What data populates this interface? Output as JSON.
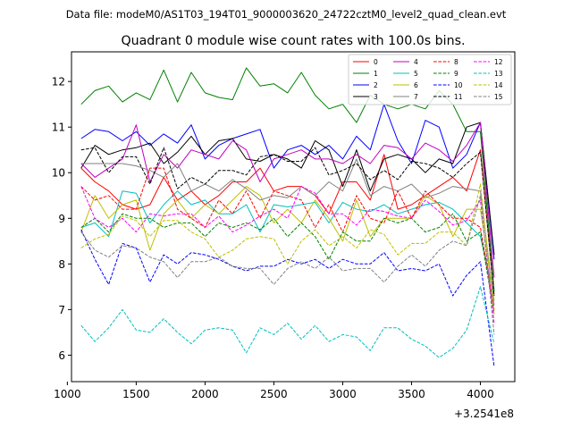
{
  "chart_data": {
    "type": "line",
    "suptitle": "Data file: modeM0/AS1T03_194T01_9000003620_24722cztM0_level2_quad_clean.evt",
    "title": "Quadrant 0 module wise count rates with 100.0s bins.",
    "xlabel": "",
    "ylabel": "",
    "x_offset_label": "+3.2541e8",
    "xlim": [
      1030,
      4250
    ],
    "ylim": [
      5.42,
      12.65
    ],
    "xticks": [
      1000,
      1500,
      2000,
      2500,
      3000,
      3500,
      4000
    ],
    "yticks": [
      6,
      7,
      8,
      9,
      10,
      11,
      12
    ],
    "legend_position": "top-right",
    "legend_columns": 4,
    "x": [
      1100,
      1200,
      1300,
      1400,
      1500,
      1600,
      1700,
      1800,
      1900,
      2000,
      2100,
      2200,
      2300,
      2400,
      2500,
      2600,
      2700,
      2800,
      2900,
      3000,
      3100,
      3200,
      3300,
      3400,
      3500,
      3600,
      3700,
      3800,
      3900,
      4000,
      4100
    ],
    "series": [
      {
        "name": "0",
        "color": "#ff0000",
        "dash": "solid",
        "values": [
          10.1,
          9.8,
          9.6,
          9.3,
          9.2,
          9.3,
          9.9,
          9.4,
          9.6,
          9.3,
          9.5,
          9.8,
          9.8,
          10.1,
          9.6,
          9.7,
          9.7,
          9.5,
          9.1,
          9.8,
          9.8,
          9.4,
          10.4,
          9.2,
          9.3,
          9.5,
          9.7,
          9.9,
          9.6,
          10.5,
          7.3
        ]
      },
      {
        "name": "1",
        "color": "#008000",
        "dash": "solid",
        "values": [
          11.5,
          11.8,
          11.9,
          11.55,
          11.75,
          11.6,
          12.25,
          11.55,
          12.2,
          11.75,
          11.65,
          11.6,
          12.3,
          11.9,
          11.95,
          11.75,
          12.2,
          11.7,
          11.4,
          11.5,
          11.1,
          11.7,
          11.5,
          11.4,
          11.5,
          11.4,
          11.8,
          11.5,
          10.9,
          10.9,
          7.4
        ]
      },
      {
        "name": "2",
        "color": "#0000ff",
        "dash": "solid",
        "values": [
          10.75,
          10.95,
          10.9,
          10.7,
          10.9,
          10.6,
          10.85,
          10.65,
          11.05,
          10.3,
          10.6,
          10.75,
          10.85,
          10.95,
          10.1,
          10.5,
          10.6,
          10.4,
          10.6,
          10.3,
          10.8,
          10.5,
          11.5,
          10.7,
          10.2,
          11.15,
          11.0,
          10.1,
          10.4,
          11.1,
          8.1
        ]
      },
      {
        "name": "3",
        "color": "#000000",
        "dash": "solid",
        "values": [
          10.1,
          10.6,
          10.4,
          10.5,
          10.55,
          10.65,
          10.2,
          10.45,
          10.8,
          10.4,
          10.7,
          10.75,
          10.3,
          10.25,
          10.4,
          10.3,
          10.1,
          10.7,
          10.5,
          9.7,
          10.5,
          9.6,
          10.3,
          10.4,
          10.3,
          10.0,
          10.3,
          10.2,
          11.0,
          11.1,
          8.2
        ]
      },
      {
        "name": "4",
        "color": "#bf00bf",
        "dash": "solid",
        "values": [
          10.2,
          9.9,
          10.1,
          10.3,
          11.05,
          9.8,
          10.4,
          10.1,
          10.5,
          10.4,
          10.3,
          10.7,
          10.5,
          9.8,
          10.3,
          10.4,
          10.5,
          10.3,
          10.3,
          10.2,
          10.4,
          10.2,
          10.6,
          10.55,
          10.3,
          10.65,
          10.5,
          10.25,
          10.6,
          11.1,
          7.7
        ]
      },
      {
        "name": "5",
        "color": "#00bfbf",
        "dash": "solid",
        "values": [
          8.8,
          8.9,
          8.6,
          9.6,
          9.55,
          8.9,
          9.3,
          9.6,
          9.3,
          9.4,
          9.1,
          9.1,
          9.3,
          8.7,
          9.3,
          9.25,
          9.3,
          9.35,
          8.9,
          9.35,
          9.2,
          9.15,
          9.3,
          9.1,
          9.2,
          9.3,
          9.35,
          9.2,
          8.9,
          8.6,
          7.3
        ]
      },
      {
        "name": "6",
        "color": "#bfbf00",
        "dash": "solid",
        "values": [
          8.7,
          9.5,
          9.0,
          9.3,
          9.4,
          8.3,
          9.1,
          9.4,
          9.0,
          9.3,
          9.1,
          9.4,
          9.7,
          9.5,
          8.9,
          9.2,
          8.9,
          9.4,
          9.0,
          8.5,
          9.4,
          8.6,
          9.0,
          9.0,
          9.0,
          9.5,
          9.3,
          8.6,
          9.2,
          9.2,
          7.2
        ]
      },
      {
        "name": "7",
        "color": "#808080",
        "dash": "solid",
        "values": [
          10.2,
          10.2,
          10.2,
          10.2,
          10.15,
          10.05,
          9.9,
          10.2,
          9.6,
          9.75,
          9.6,
          9.85,
          9.65,
          9.4,
          9.5,
          9.45,
          9.7,
          9.5,
          9.8,
          9.6,
          10.3,
          9.5,
          9.7,
          9.6,
          9.75,
          9.45,
          9.55,
          9.7,
          9.65,
          9.6,
          7.1
        ]
      },
      {
        "name": "8",
        "color": "#ff0000",
        "dash": "dashed",
        "values": [
          9.7,
          9.4,
          9.5,
          9.2,
          9.2,
          10.1,
          10.1,
          9.2,
          9.0,
          8.8,
          9.4,
          9.1,
          9.6,
          9.0,
          9.6,
          9.5,
          9.4,
          8.8,
          9.3,
          8.7,
          9.5,
          9.0,
          8.9,
          9.6,
          9.0,
          9.6,
          9.3,
          9.0,
          9.0,
          8.8,
          7.0
        ]
      },
      {
        "name": "9",
        "color": "#008000",
        "dash": "dashed",
        "values": [
          8.8,
          9.0,
          8.7,
          9.1,
          9.0,
          9.0,
          8.8,
          8.9,
          8.9,
          8.6,
          8.9,
          8.8,
          8.9,
          8.75,
          9.0,
          8.6,
          8.9,
          8.6,
          8.1,
          8.7,
          8.5,
          8.5,
          9.0,
          8.9,
          9.0,
          8.7,
          8.8,
          9.1,
          8.5,
          8.7,
          6.9
        ]
      },
      {
        "name": "10",
        "color": "#0000ff",
        "dash": "dashed",
        "values": [
          8.75,
          8.1,
          7.55,
          8.45,
          8.35,
          7.6,
          8.2,
          8.0,
          8.25,
          8.2,
          8.1,
          7.95,
          7.85,
          7.95,
          7.95,
          8.1,
          8.0,
          8.1,
          7.9,
          8.1,
          8.0,
          8.0,
          8.25,
          7.85,
          7.9,
          7.85,
          8.0,
          7.3,
          7.75,
          8.05,
          5.75
        ]
      },
      {
        "name": "11",
        "color": "#000000",
        "dash": "dashed",
        "values": [
          10.5,
          10.55,
          10.0,
          10.35,
          10.35,
          9.75,
          10.55,
          9.65,
          9.9,
          9.75,
          10.05,
          10.05,
          9.95,
          10.35,
          10.4,
          10.25,
          10.25,
          10.55,
          9.95,
          10.05,
          10.2,
          9.85,
          10.05,
          9.85,
          10.25,
          10.2,
          10.1,
          9.9,
          10.2,
          10.45,
          7.3
        ]
      },
      {
        "name": "12",
        "color": "#ff00ff",
        "dash": "dashed",
        "values": [
          9.7,
          9.0,
          8.8,
          9.0,
          8.7,
          9.1,
          9.05,
          9.1,
          9.1,
          8.8,
          9.05,
          8.7,
          8.85,
          9.05,
          9.2,
          9.0,
          9.7,
          9.55,
          9.1,
          9.1,
          8.85,
          9.2,
          9.15,
          9.05,
          9.0,
          9.4,
          9.15,
          8.85,
          8.95,
          9.4,
          6.7
        ]
      },
      {
        "name": "13",
        "color": "#00bfbf",
        "dash": "dashed",
        "values": [
          6.65,
          6.3,
          6.6,
          7.0,
          6.55,
          6.5,
          6.8,
          6.5,
          6.25,
          6.55,
          6.6,
          6.55,
          6.05,
          6.6,
          6.45,
          6.7,
          6.35,
          6.65,
          6.3,
          6.45,
          6.4,
          6.1,
          6.6,
          6.6,
          6.35,
          6.2,
          5.95,
          6.15,
          6.55,
          7.5,
          6.25
        ]
      },
      {
        "name": "14",
        "color": "#bfbf00",
        "dash": "dashed",
        "values": [
          8.35,
          8.55,
          8.65,
          9.05,
          8.95,
          8.6,
          8.95,
          8.95,
          8.7,
          8.55,
          8.15,
          8.3,
          8.55,
          8.6,
          8.55,
          8.0,
          8.5,
          8.75,
          8.4,
          8.6,
          8.35,
          8.75,
          8.65,
          8.2,
          8.45,
          8.45,
          8.7,
          8.7,
          8.4,
          9.75,
          6.9
        ]
      },
      {
        "name": "15",
        "color": "#808080",
        "dash": "dashed",
        "values": [
          8.7,
          8.3,
          8.15,
          8.4,
          8.35,
          8.15,
          8.05,
          7.7,
          8.05,
          8.05,
          8.15,
          7.95,
          7.9,
          7.9,
          7.55,
          7.9,
          8.05,
          7.9,
          8.15,
          7.85,
          7.9,
          7.9,
          7.6,
          7.95,
          8.2,
          7.95,
          8.3,
          8.5,
          8.4,
          9.5,
          6.45
        ]
      }
    ]
  }
}
